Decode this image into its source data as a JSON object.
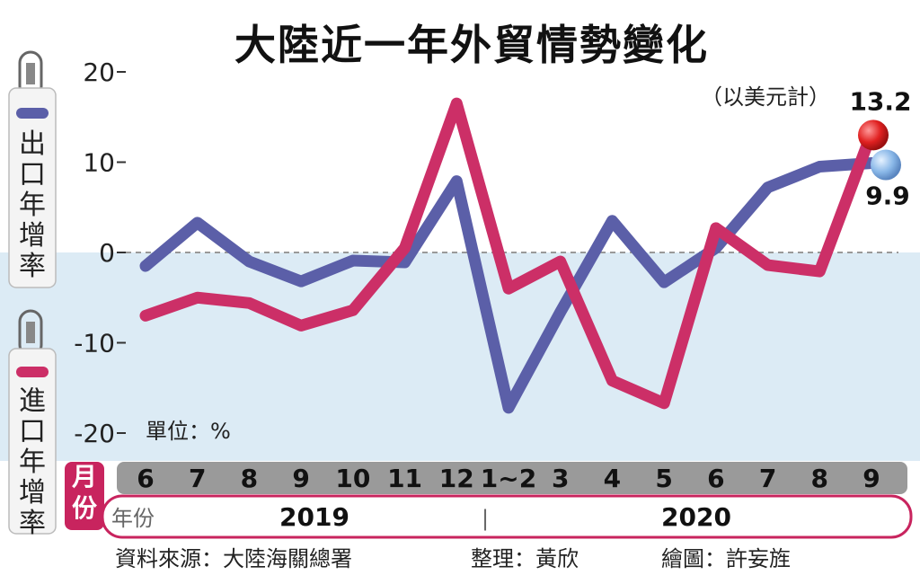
{
  "title": "大陸近一年外貿情勢變化",
  "unit_note": "（以美元計）",
  "unit_label": "單位：%",
  "legend": {
    "export": "出口年增率",
    "import": "進口年增率"
  },
  "axis": {
    "month_header": "月份",
    "year_header": "年份",
    "year_2019": "2019",
    "year_separator": "|",
    "year_2020": "2020"
  },
  "footer": {
    "source": "資料來源：大陸海關總署",
    "editor": "整理：黃欣",
    "illustrator": "繪圖：許妄旌"
  },
  "colors": {
    "export": "#5b5fa8",
    "import": "#cc2f67",
    "negative_band": "#dcebf5",
    "month_bar": "#9a9a9a",
    "header": "#c8245e"
  },
  "chart_data": {
    "type": "line",
    "categories": [
      "6",
      "7",
      "8",
      "9",
      "10",
      "11",
      "12",
      "1~2",
      "3",
      "4",
      "5",
      "6",
      "7",
      "8",
      "9"
    ],
    "ylim": [
      -20,
      20
    ],
    "yticks": [
      "20",
      "10",
      "0",
      "-10",
      "-20"
    ],
    "series": [
      {
        "name": "出口年增率",
        "values": [
          -1.5,
          3.3,
          -1.0,
          -3.2,
          -0.9,
          -1.1,
          7.9,
          -17.2,
          -6.6,
          3.5,
          -3.3,
          0.5,
          7.2,
          9.5,
          9.9
        ]
      },
      {
        "name": "進口年增率",
        "values": [
          -7.0,
          -5.0,
          -5.6,
          -8.1,
          -6.4,
          0.5,
          16.5,
          -4.0,
          -1.0,
          -14.2,
          -16.7,
          2.7,
          -1.4,
          -2.1,
          13.2
        ]
      }
    ],
    "end_labels": {
      "import": "13.2",
      "export": "9.9"
    }
  }
}
